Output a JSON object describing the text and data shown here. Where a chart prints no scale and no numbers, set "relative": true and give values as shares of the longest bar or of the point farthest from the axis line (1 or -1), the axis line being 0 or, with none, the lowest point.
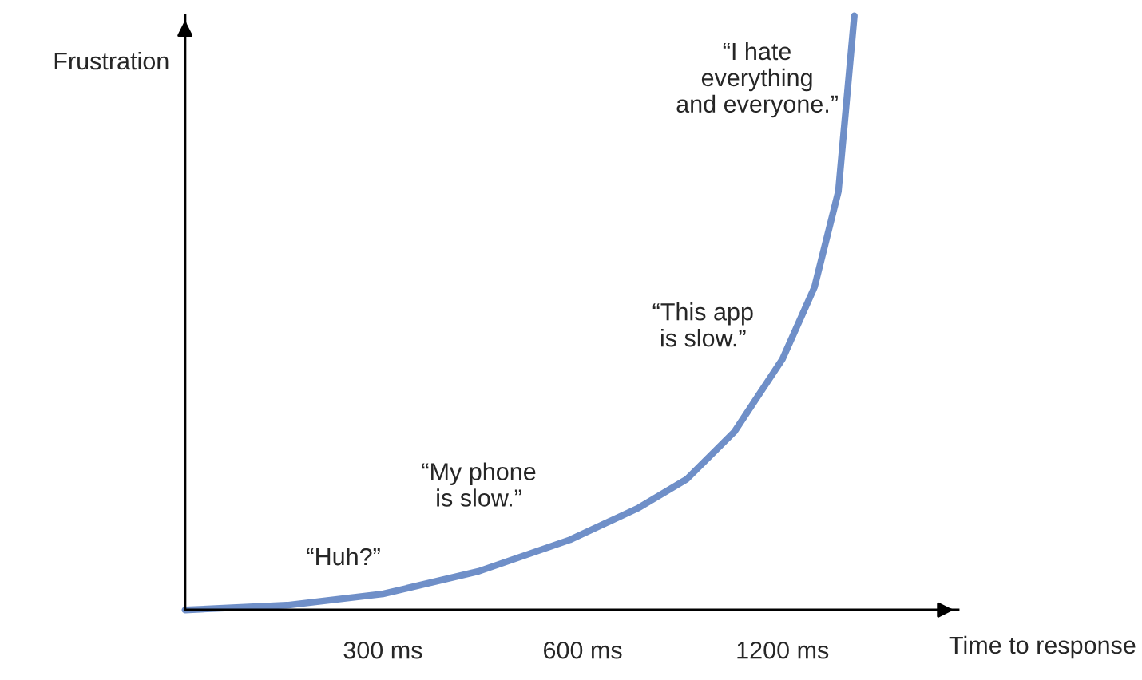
{
  "chart_data": {
    "type": "line",
    "relative": true,
    "ylabel": "Frustration",
    "xlabel": "Time to response",
    "log": "x",
    "xlim": [
      151,
      2208
    ],
    "xticks": [
      {
        "value": 300,
        "label": "300 ms"
      },
      {
        "value": 600,
        "label": "600 ms"
      },
      {
        "value": 1200,
        "label": "1200 ms"
      }
    ],
    "series": [
      {
        "color": "#6f8fc8",
        "x": [
          151,
          215,
          300,
          418,
          574,
          729,
          861,
          1016,
          1200,
          1341,
          1457,
          1540
        ],
        "values": [
          0,
          0.008,
          0.027,
          0.065,
          0.118,
          0.172,
          0.22,
          0.3,
          0.422,
          0.543,
          0.704,
          1
        ]
      }
    ],
    "annotations": [
      "“Huh?”",
      "“My phone\nis slow.”",
      "“This app\nis slow.”",
      "“I hate\neverything\nand everyone.”"
    ],
    "grid": false,
    "legend": false
  }
}
